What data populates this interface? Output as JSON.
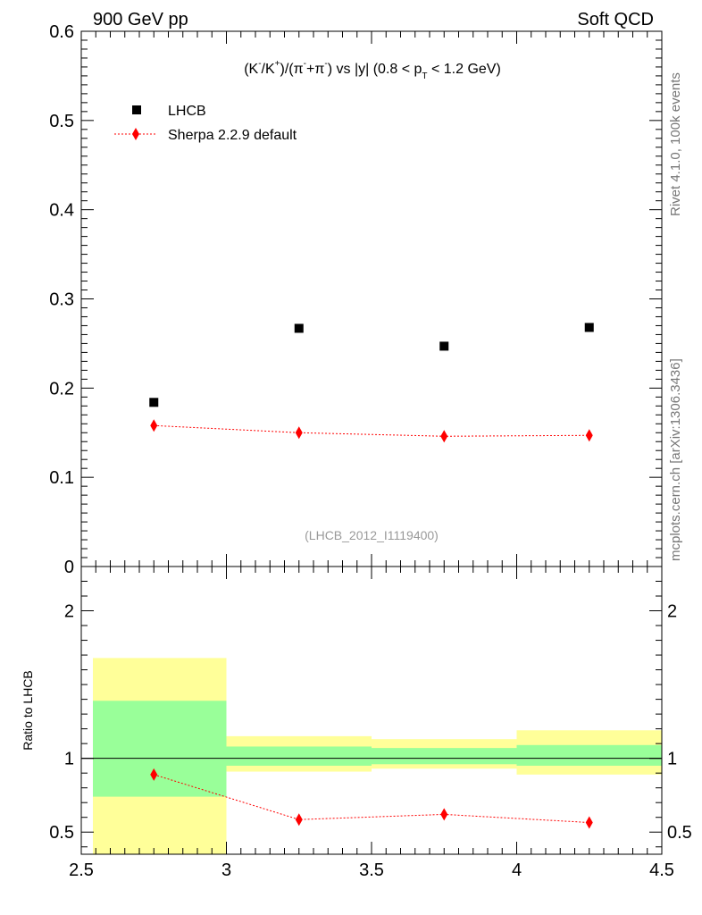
{
  "header": {
    "left": "900 GeV pp",
    "right": "Soft QCD"
  },
  "side": {
    "rivet": "Rivet 4.1.0,  100k events",
    "mcplots": "mcplots.cern.ch [arXiv:1306.3436]"
  },
  "colors": {
    "data": "#000000",
    "mc": "#ff0000",
    "band_outer": "#ffff99",
    "band_inner": "#99ff99"
  },
  "chart_data": [
    {
      "type": "scatter",
      "title": "(K⁻/K⁺)/(π⁻+π⁻) vs |y| (0.8 < p_T < 1.2 GeV)",
      "title_parts": {
        "a": "(K",
        "b": "/K",
        "c": ")/(π",
        "d": "+π",
        "e": ") vs |y| (0.8 < p",
        "f": " < 1.2 GeV)",
        "sup_minus": "-",
        "sup_plus": "+",
        "sub_t": "T"
      },
      "annotation": "(LHCB_2012_I1119400)",
      "xlim": [
        2.5,
        4.5
      ],
      "ylim": [
        0,
        0.6
      ],
      "yticks": [
        "0",
        "0.1",
        "0.2",
        "0.3",
        "0.4",
        "0.5",
        "0.6"
      ],
      "ytick_values": [
        0,
        0.1,
        0.2,
        0.3,
        0.4,
        0.5,
        0.6
      ],
      "legend": {
        "data_label": "LHCB",
        "mc_label": "Sherpa 2.2.9 default",
        "placement": "top-left"
      },
      "series": [
        {
          "name": "LHCB",
          "x": [
            2.75,
            3.25,
            3.75,
            4.25
          ],
          "y": [
            0.184,
            0.267,
            0.247,
            0.268
          ]
        },
        {
          "name": "Sherpa 2.2.9 default",
          "x": [
            2.75,
            3.25,
            3.75,
            4.25
          ],
          "y": [
            0.158,
            0.15,
            0.146,
            0.147
          ]
        }
      ]
    },
    {
      "type": "line",
      "ylabel": "Ratio to LHCB",
      "xlim": [
        2.5,
        4.5
      ],
      "ylim": [
        0.35,
        2.3
      ],
      "xticks": [
        "2.5",
        "3",
        "3.5",
        "4",
        "4.5"
      ],
      "xtick_values": [
        2.5,
        3,
        3.5,
        4,
        4.5
      ],
      "yticks": [
        "0.5",
        "1",
        "2"
      ],
      "ytick_values": [
        0.5,
        1,
        2
      ],
      "bins": [
        [
          2.5,
          3.0
        ],
        [
          3.0,
          3.5
        ],
        [
          3.5,
          4.0
        ],
        [
          4.0,
          4.5
        ]
      ],
      "band_outer": [
        [
          0.35,
          1.68
        ],
        [
          0.91,
          1.15
        ],
        [
          0.93,
          1.13
        ],
        [
          0.89,
          1.19
        ]
      ],
      "band_inner": [
        [
          0.74,
          1.39
        ],
        [
          0.95,
          1.08
        ],
        [
          0.96,
          1.07
        ],
        [
          0.95,
          1.09
        ]
      ],
      "series": [
        {
          "name": "Sherpa 2.2.9 default",
          "x": [
            2.75,
            3.25,
            3.75,
            4.25
          ],
          "y": [
            0.89,
            0.585,
            0.62,
            0.565
          ],
          "err": [
            0.02,
            0.02,
            0.02,
            0.02
          ]
        }
      ]
    }
  ]
}
